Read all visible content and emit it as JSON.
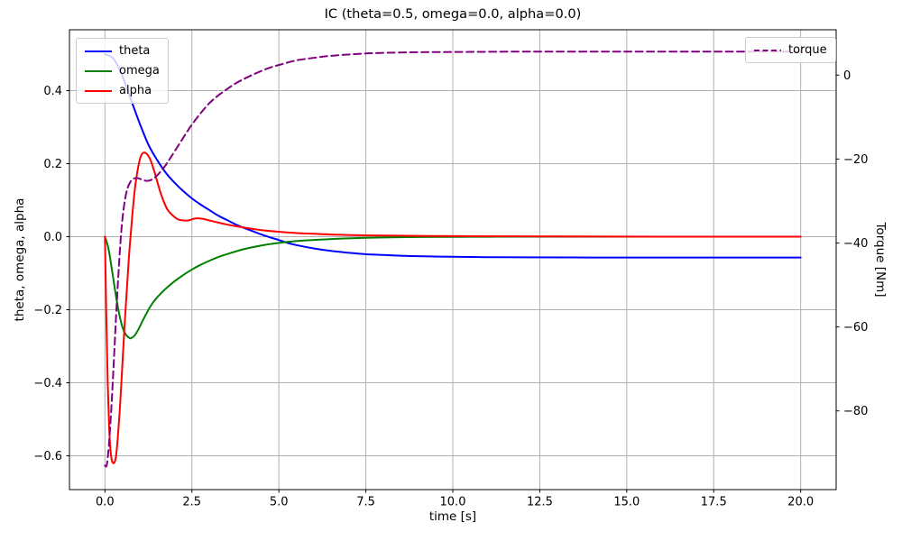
{
  "chart_data": {
    "type": "line",
    "title": "IC (theta=0.5, omega=0.0, alpha=0.0)",
    "xlabel": "time [s]",
    "ylabel_left": "theta, omega, alpha",
    "ylabel_right": "Torque [Nm]",
    "grid": true,
    "grid_color": "#b0b0b0",
    "background": "#ffffff",
    "xlim": [
      -1.02,
      21.02
    ],
    "ylim_left": [
      -0.6926,
      0.5667
    ],
    "ylim_right": [
      -98.75,
      10.8
    ],
    "xticks": {
      "values": [
        0,
        2.5,
        5,
        7.5,
        10,
        12.5,
        15,
        17.5,
        20
      ],
      "labels": [
        "0.0",
        "2.5",
        "5.0",
        "7.5",
        "10.0",
        "12.5",
        "15.0",
        "17.5",
        "20.0"
      ]
    },
    "yticks_left": {
      "values": [
        0.4,
        0.2,
        0.0,
        -0.2,
        -0.4,
        -0.6
      ],
      "labels": [
        "0.4",
        "0.2",
        "0.0",
        "−0.2",
        "−0.4",
        "−0.6"
      ]
    },
    "yticks_right": {
      "values": [
        0,
        -20,
        -40,
        -60,
        -80
      ],
      "labels": [
        "0",
        "−20",
        "−40",
        "−60",
        "−80"
      ]
    },
    "legend_left": {
      "position": "upper left",
      "items": [
        {
          "label": "theta"
        },
        {
          "label": "omega"
        },
        {
          "label": "alpha"
        }
      ]
    },
    "legend_right": {
      "position": "upper right",
      "items": [
        {
          "label": "torque"
        }
      ]
    },
    "series": [
      {
        "name": "theta",
        "axis": "left",
        "color": "#0000ff",
        "style": "solid",
        "width": 2,
        "x": [
          0,
          0.25,
          0.5,
          0.75,
          1.0,
          1.25,
          1.5,
          1.75,
          2.0,
          2.25,
          2.5,
          2.75,
          3.0,
          3.25,
          3.5,
          3.75,
          4.0,
          4.25,
          4.5,
          4.75,
          5.0,
          5.25,
          5.5,
          6.0,
          6.5,
          7.0,
          7.5,
          8.0,
          8.5,
          9.0,
          10,
          11,
          12,
          14,
          16,
          18,
          20
        ],
        "y": [
          0.5,
          0.487,
          0.44,
          0.375,
          0.31,
          0.252,
          0.21,
          0.175,
          0.148,
          0.125,
          0.105,
          0.088,
          0.073,
          0.058,
          0.046,
          0.034,
          0.024,
          0.015,
          0.006,
          -0.002,
          -0.009,
          -0.017,
          -0.023,
          -0.032,
          -0.039,
          -0.044,
          -0.048,
          -0.05,
          -0.052,
          -0.0535,
          -0.055,
          -0.056,
          -0.0565,
          -0.057,
          -0.057,
          -0.057,
          -0.057
        ]
      },
      {
        "name": "omega",
        "axis": "left",
        "color": "#008000",
        "style": "solid",
        "width": 2,
        "x": [
          0,
          0.1,
          0.2,
          0.3,
          0.4,
          0.5,
          0.6,
          0.7,
          0.75,
          0.85,
          0.95,
          1.05,
          1.15,
          1.3,
          1.45,
          1.6,
          1.8,
          2.0,
          2.25,
          2.5,
          2.75,
          3.0,
          3.25,
          3.5,
          4.0,
          4.5,
          5.0,
          5.5,
          6.0,
          6.5,
          7.0,
          7.5,
          8.0,
          9.0,
          10,
          11,
          12,
          14,
          16,
          20
        ],
        "y": [
          0,
          -0.032,
          -0.09,
          -0.152,
          -0.207,
          -0.247,
          -0.268,
          -0.277,
          -0.278,
          -0.271,
          -0.256,
          -0.237,
          -0.218,
          -0.192,
          -0.172,
          -0.156,
          -0.138,
          -0.122,
          -0.105,
          -0.09,
          -0.077,
          -0.066,
          -0.056,
          -0.048,
          -0.034,
          -0.024,
          -0.017,
          -0.012,
          -0.009,
          -0.0065,
          -0.0045,
          -0.0032,
          -0.0022,
          -0.001,
          -0.0005,
          -0.0002,
          0,
          0,
          0,
          0
        ]
      },
      {
        "name": "alpha",
        "axis": "left",
        "color": "#ff0000",
        "style": "solid",
        "width": 2,
        "x": [
          0,
          0.04,
          0.08,
          0.12,
          0.16,
          0.2,
          0.24,
          0.28,
          0.32,
          0.37,
          0.43,
          0.49,
          0.56,
          0.63,
          0.69,
          0.74,
          0.79,
          0.85,
          0.91,
          0.98,
          1.04,
          1.11,
          1.2,
          1.3,
          1.4,
          1.5,
          1.6,
          1.7,
          1.8,
          1.95,
          2.1,
          2.25,
          2.4,
          2.6,
          2.8,
          3.0,
          3.2,
          3.5,
          4.0,
          4.5,
          5.0,
          5.5,
          6.0,
          7.0,
          8.0,
          10,
          12,
          16,
          20
        ],
        "y": [
          0,
          -0.22,
          -0.4,
          -0.52,
          -0.585,
          -0.613,
          -0.62,
          -0.617,
          -0.6,
          -0.55,
          -0.47,
          -0.37,
          -0.25,
          -0.145,
          -0.055,
          0.005,
          0.062,
          0.122,
          0.165,
          0.202,
          0.222,
          0.23,
          0.227,
          0.212,
          0.185,
          0.152,
          0.12,
          0.094,
          0.074,
          0.058,
          0.0475,
          0.0445,
          0.0445,
          0.05,
          0.049,
          0.0445,
          0.04,
          0.0335,
          0.025,
          0.018,
          0.0135,
          0.01,
          0.008,
          0.0045,
          0.003,
          0.0015,
          0.001,
          0,
          0
        ]
      },
      {
        "name": "torque",
        "axis": "right",
        "color": "#800080",
        "style": "dashed",
        "width": 2,
        "x": [
          0,
          0.05,
          0.1,
          0.15,
          0.2,
          0.26,
          0.32,
          0.38,
          0.44,
          0.5,
          0.57,
          0.64,
          0.72,
          0.8,
          0.9,
          1.0,
          1.1,
          1.2,
          1.32,
          1.45,
          1.6,
          1.75,
          1.9,
          2.1,
          2.3,
          2.5,
          2.75,
          3.0,
          3.25,
          3.5,
          3.75,
          4.0,
          4.25,
          4.5,
          4.75,
          5.0,
          5.5,
          6.0,
          6.5,
          7.0,
          7.5,
          8.0,
          9.0,
          10,
          11,
          12,
          14,
          16,
          18,
          20
        ],
        "y": [
          -93,
          -93,
          -89.5,
          -84,
          -77,
          -67.5,
          -57.5,
          -48.5,
          -40.5,
          -34.5,
          -30,
          -27.2,
          -25.6,
          -24.8,
          -24.5,
          -24.7,
          -25.0,
          -25.2,
          -25.0,
          -24.3,
          -23.0,
          -21.4,
          -19.5,
          -16.9,
          -14.3,
          -11.8,
          -9.1,
          -6.7,
          -4.9,
          -3.4,
          -2.0,
          -0.9,
          0.1,
          1.0,
          1.8,
          2.4,
          3.5,
          4.1,
          4.6,
          4.9,
          5.15,
          5.3,
          5.45,
          5.5,
          5.55,
          5.6,
          5.6,
          5.6,
          5.6,
          5.6
        ]
      }
    ]
  }
}
